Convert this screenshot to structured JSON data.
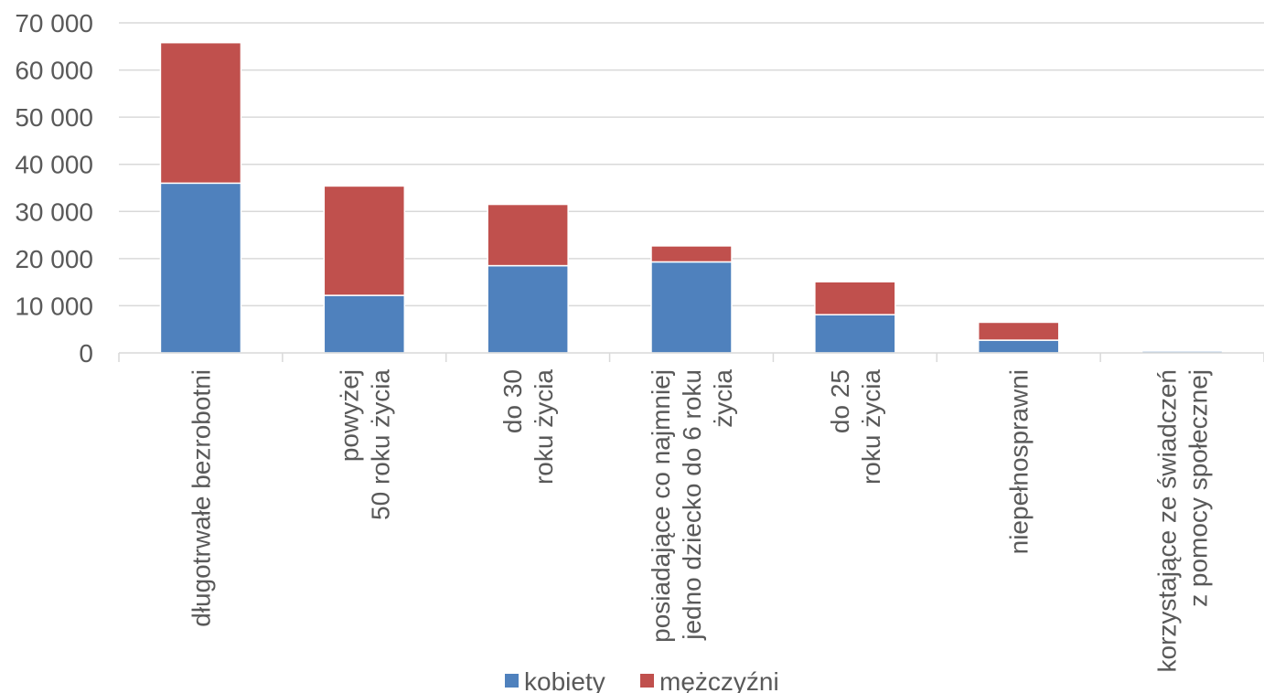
{
  "chart_data": {
    "type": "bar",
    "stacked": true,
    "categories": [
      [
        "długotrwałe bezrobotni"
      ],
      [
        "powyżej",
        "50 roku życia"
      ],
      [
        "do 30",
        "roku życia"
      ],
      [
        "posiadające co najmniej",
        "jedno dziecko do 6 roku",
        "życia"
      ],
      [
        "do 25",
        "roku życia"
      ],
      [
        "niepełnosprawni"
      ],
      [
        "korzystające ze świadczeń",
        "z pomocy społecznej"
      ]
    ],
    "series": [
      {
        "name": "kobiety",
        "color": "#4F81BD",
        "values": [
          36000,
          12200,
          18500,
          19300,
          8100,
          2700,
          400
        ]
      },
      {
        "name": "mężczyźni",
        "color": "#C0504D",
        "values": [
          29800,
          23200,
          13000,
          3400,
          7000,
          3800,
          200
        ]
      }
    ],
    "ylim": [
      0,
      70000
    ],
    "yticks": [
      "0",
      "10 000",
      "20 000",
      "30 000",
      "40 000",
      "50 000",
      "60 000",
      "70 000"
    ],
    "ytick_values": [
      0,
      10000,
      20000,
      30000,
      40000,
      50000,
      60000,
      70000
    ],
    "grid": true,
    "legend": "bottom",
    "gridline_color": "#D9D9D9",
    "axis_color": "#D9D9D9"
  }
}
